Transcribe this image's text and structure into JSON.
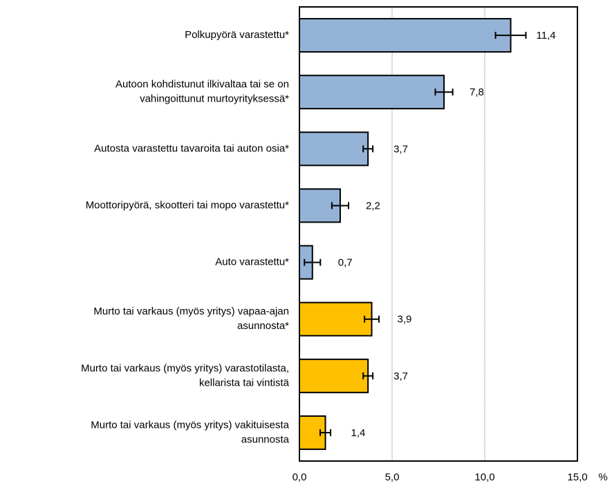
{
  "chart_data": {
    "type": "hbar",
    "categories": [
      [
        "Polkupyörä varastettu*"
      ],
      [
        "Autoon kohdistunut ilkivaltaa tai se on",
        "vahingoittunut murtoyrityksessä*"
      ],
      [
        "Autosta varastettu tavaroita tai auton osia*"
      ],
      [
        "Moottoripyörä, skootteri tai mopo varastettu*"
      ],
      [
        "Auto varastettu*"
      ],
      [
        "Murto tai varkaus (myös yritys) vapaa-ajan",
        "asunnosta*"
      ],
      [
        "Murto tai varkaus (myös yritys) varastotilasta,",
        "kellarista tai vintistä"
      ],
      [
        "Murto tai varkaus (myös yritys) vakituisesta",
        "asunnosta"
      ]
    ],
    "values": [
      11.4,
      7.8,
      3.7,
      2.2,
      0.7,
      3.9,
      3.7,
      1.4
    ],
    "value_labels": [
      "11,4",
      "7,8",
      "3,7",
      "2,2",
      "0,7",
      "3,9",
      "3,7",
      "1,4"
    ],
    "errors": [
      0.82,
      0.47,
      0.26,
      0.45,
      0.43,
      0.39,
      0.26,
      0.28
    ],
    "colors": [
      "#95b3d7",
      "#95b3d7",
      "#95b3d7",
      "#95b3d7",
      "#95b3d7",
      "#ffc000",
      "#ffc000",
      "#ffc000"
    ],
    "x_label": "%",
    "xlim": [
      0,
      15
    ],
    "xticks": [
      {
        "value": 0,
        "label": "0,0"
      },
      {
        "value": 5,
        "label": "5,0"
      },
      {
        "value": 10,
        "label": "10,0"
      },
      {
        "value": 15,
        "label": "15,0"
      }
    ],
    "grid": true
  }
}
